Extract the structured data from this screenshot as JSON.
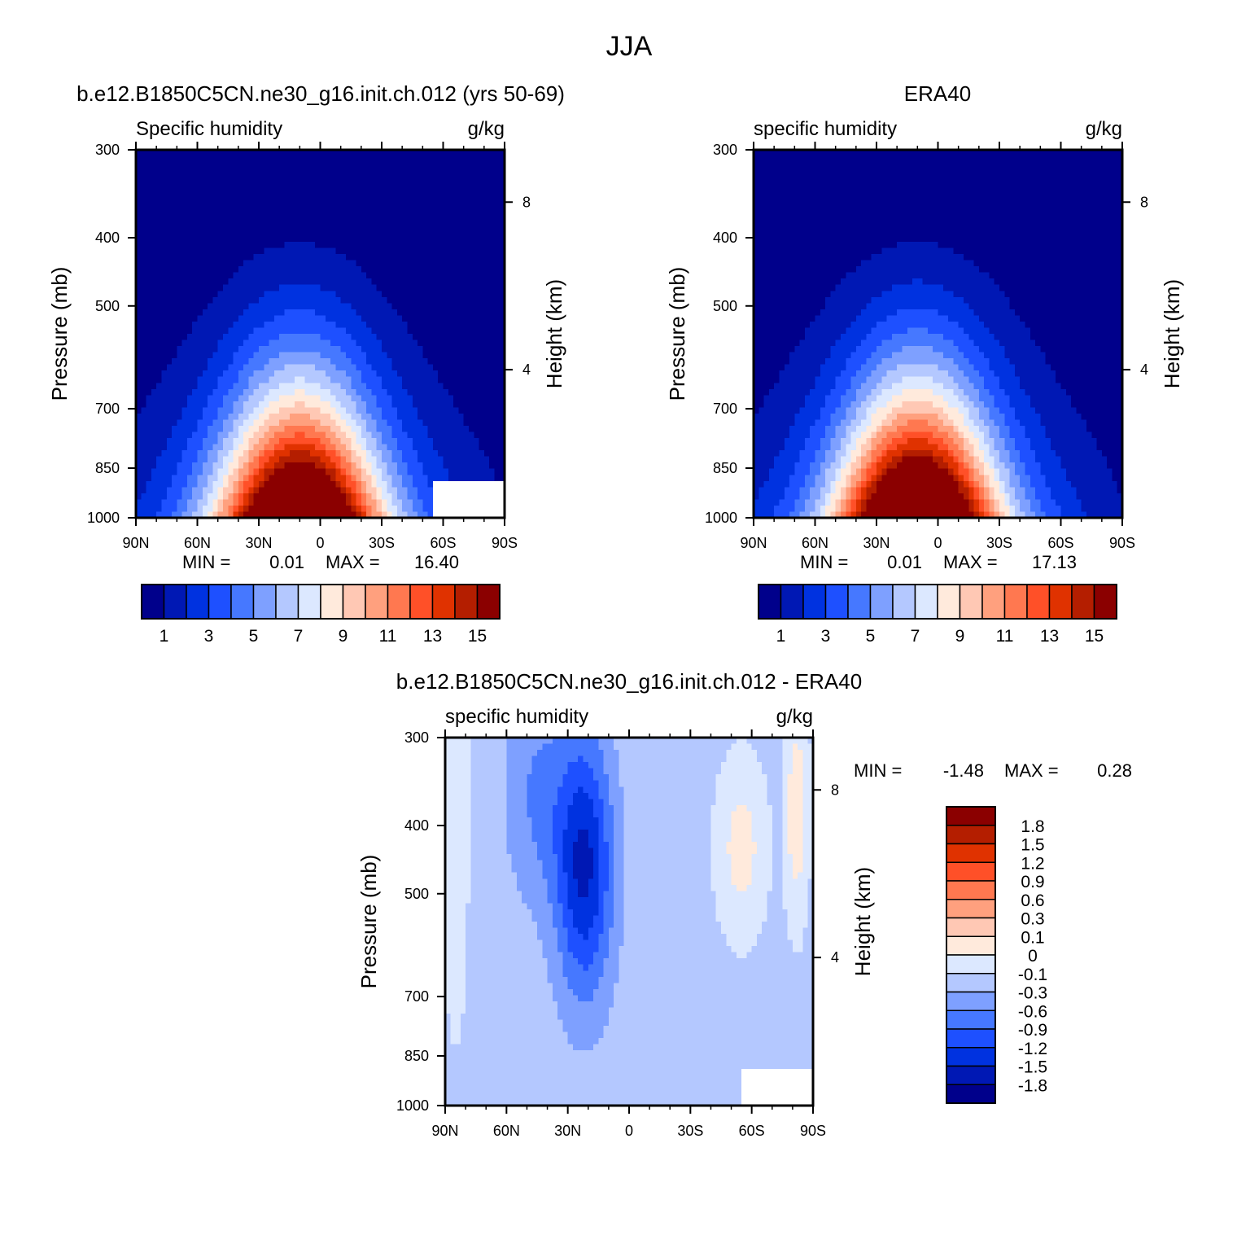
{
  "figure": {
    "title": "JJA"
  },
  "colors": {
    "abs_palette": [
      "#00008b",
      "#0018b4",
      "#0032e0",
      "#1e50ff",
      "#4678ff",
      "#7ea0ff",
      "#b4c8ff",
      "#dce8ff",
      "#ffeadc",
      "#ffc8b4",
      "#ffa07e",
      "#ff7850",
      "#ff5028",
      "#e03200",
      "#b41e00",
      "#8b0000"
    ],
    "diff_palette": [
      "#00008b",
      "#0018b4",
      "#0032e0",
      "#1e50ff",
      "#4678ff",
      "#7ea0ff",
      "#b4c8ff",
      "#dce8ff",
      "#ffeadc",
      "#ffc8b4",
      "#ffa07e",
      "#ff7850",
      "#ff5028",
      "#e03200",
      "#b41e00",
      "#8b0000"
    ],
    "missing": "#ffffff"
  },
  "chart_data": [
    {
      "type": "heatmap",
      "id": "model",
      "title": "b.e12.B1850C5CN.ne30_g16.init.ch.012 (yrs 50-69)",
      "left_label": "Specific humidity",
      "right_label": "g/kg",
      "ylabel": "Pressure (mb)",
      "ylabel_right": "Height (km)",
      "x_ticks": [
        "90N",
        "60N",
        "30N",
        "0",
        "30S",
        "60S",
        "90S"
      ],
      "y_ticks": [
        "300",
        "400",
        "500",
        "700",
        "850",
        "1000"
      ],
      "y_ticks_right": [
        "8",
        "4"
      ],
      "xlim": [
        90,
        -90
      ],
      "ylim": [
        1000,
        300
      ],
      "stats": {
        "min_label": "MIN =",
        "min_value": "0.01",
        "max_label": "MAX =",
        "max_value": "16.40"
      },
      "colorbar_labels": [
        "1",
        "3",
        "5",
        "7",
        "9",
        "11",
        "13",
        "15"
      ],
      "levels": [
        1,
        2,
        3,
        4,
        5,
        6,
        7,
        8,
        9,
        10,
        11,
        12,
        13,
        14,
        15
      ],
      "field": {
        "peak_lat": 10,
        "peak_value": 16.4,
        "cap_value": 0.6,
        "missing_region": "60S-90S near surface"
      }
    },
    {
      "type": "heatmap",
      "id": "obs",
      "title": "ERA40",
      "left_label": "specific humidity",
      "right_label": "g/kg",
      "ylabel": "Pressure (mb)",
      "ylabel_right": "Height (km)",
      "x_ticks": [
        "90N",
        "60N",
        "30N",
        "0",
        "30S",
        "60S",
        "90S"
      ],
      "y_ticks": [
        "300",
        "400",
        "500",
        "700",
        "850",
        "1000"
      ],
      "y_ticks_right": [
        "8",
        "4"
      ],
      "xlim": [
        90,
        -90
      ],
      "ylim": [
        1000,
        300
      ],
      "stats": {
        "min_label": "MIN =",
        "min_value": "0.01",
        "max_label": "MAX =",
        "max_value": "17.13"
      },
      "colorbar_labels": [
        "1",
        "3",
        "5",
        "7",
        "9",
        "11",
        "13",
        "15"
      ],
      "levels": [
        1,
        2,
        3,
        4,
        5,
        6,
        7,
        8,
        9,
        10,
        11,
        12,
        13,
        14,
        15
      ],
      "field": {
        "peak_lat": 10,
        "peak_value": 17.13,
        "cap_value": 0.6
      }
    },
    {
      "type": "heatmap",
      "id": "diff",
      "title": "b.e12.B1850C5CN.ne30_g16.init.ch.012 - ERA40",
      "left_label": "specific humidity",
      "right_label": "g/kg",
      "ylabel": "Pressure (mb)",
      "ylabel_right": "Height (km)",
      "x_ticks": [
        "90N",
        "60N",
        "30N",
        "0",
        "30S",
        "60S",
        "90S"
      ],
      "y_ticks": [
        "300",
        "400",
        "500",
        "700",
        "850",
        "1000"
      ],
      "y_ticks_right": [
        "8",
        "4"
      ],
      "xlim": [
        90,
        -90
      ],
      "ylim": [
        1000,
        300
      ],
      "stats": {
        "min_label": "MIN =",
        "min_value": "-1.48",
        "max_label": "MAX =",
        "max_value": "0.28"
      },
      "colorbar_labels": [
        "1.8",
        "1.5",
        "1.2",
        "0.9",
        "0.6",
        "0.3",
        "0.1",
        "0",
        "-0.1",
        "-0.3",
        "-0.6",
        "-0.9",
        "-1.2",
        "-1.5",
        "-1.8"
      ],
      "levels": [
        -1.8,
        -1.5,
        -1.2,
        -0.9,
        -0.6,
        -0.3,
        -0.1,
        0,
        0.1,
        0.3,
        0.6,
        0.9,
        1.2,
        1.5,
        1.8
      ],
      "field": {
        "min_lat": 22,
        "min_value": -1.48,
        "max_value": 0.28,
        "missing_region": "60S-90S near surface"
      }
    }
  ]
}
